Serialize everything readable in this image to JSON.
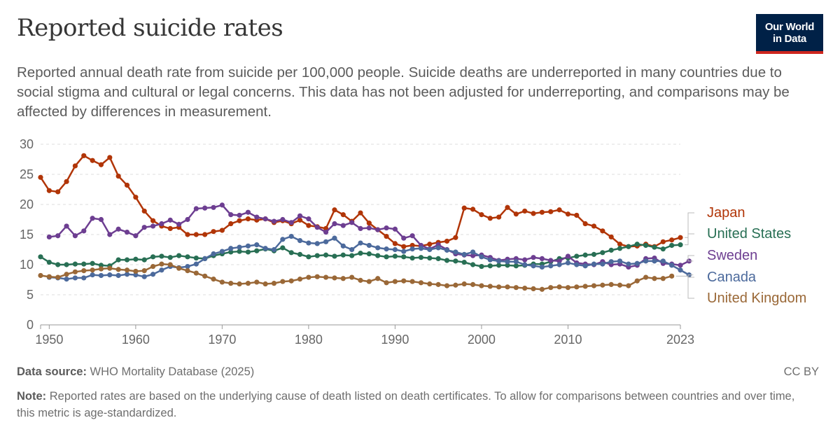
{
  "header": {
    "title": "Reported suicide rates",
    "subtitle": "Reported annual death rate from suicide per 100,000 people. Suicide deaths are underreported in many countries due to social stigma and cultural or legal concerns. This data has not been adjusted for underreporting, and comparisons may be affected by differences in measurement.",
    "logo_line1": "Our World",
    "logo_line2": "in Data"
  },
  "footer": {
    "source_label": "Data source:",
    "source_text": " WHO Mortality Database (2025)",
    "license": "CC BY",
    "note_label": "Note:",
    "note_text": " Reported rates are based on the underlying cause of death listed on death certificates. To allow for comparisons between countries and over time, this metric is age-standardized."
  },
  "chart_data": {
    "type": "line",
    "title": "",
    "xlabel": "",
    "ylabel": "",
    "xlim": [
      1949,
      2023
    ],
    "ylim": [
      0,
      30
    ],
    "x_ticks": [
      "1950",
      "1960",
      "1970",
      "1980",
      "1990",
      "2000",
      "2010",
      "2023"
    ],
    "y_ticks": [
      "0",
      "5",
      "10",
      "15",
      "20",
      "25",
      "30"
    ],
    "grid": "horizontal dashed",
    "legend": "right end labels",
    "series": [
      {
        "name": "Japan",
        "color": "#b13507",
        "start": 1949,
        "values": [
          24.5,
          22.3,
          22.1,
          23.8,
          26.4,
          28.1,
          27.3,
          26.6,
          27.8,
          24.7,
          23.2,
          21.2,
          18.9,
          17.3,
          16.4,
          16.0,
          16.2,
          15.0,
          15.0,
          15.0,
          15.5,
          15.7,
          16.8,
          17.3,
          17.6,
          17.4,
          17.6,
          17.0,
          17.3,
          16.8,
          17.4,
          16.5,
          16.3,
          16.0,
          19.1,
          18.3,
          17.2,
          18.6,
          16.9,
          15.8,
          14.7,
          13.5,
          13.0,
          13.2,
          13.1,
          13.4,
          13.7,
          13.9,
          14.5,
          19.4,
          19.2,
          18.3,
          17.7,
          17.9,
          19.5,
          18.4,
          18.9,
          18.5,
          18.7,
          18.8,
          19.1,
          18.4,
          18.2,
          16.8,
          16.4,
          15.6,
          14.6,
          13.4,
          13.0,
          13.1,
          13.4,
          13.0,
          13.8,
          14.1,
          14.5
        ]
      },
      {
        "name": "United States",
        "color": "#286f54",
        "start": 1949,
        "values": [
          11.3,
          10.4,
          10.0,
          10.0,
          10.1,
          10.1,
          10.2,
          9.9,
          9.8,
          10.8,
          10.8,
          10.9,
          10.8,
          11.3,
          11.4,
          11.2,
          11.5,
          11.3,
          11.1,
          11.0,
          11.5,
          11.8,
          12.1,
          12.2,
          12.1,
          12.3,
          12.6,
          12.3,
          12.8,
          12.0,
          11.7,
          11.3,
          11.5,
          11.6,
          11.4,
          11.6,
          11.5,
          11.9,
          11.8,
          11.5,
          11.3,
          11.4,
          11.3,
          11.1,
          11.2,
          11.1,
          11.0,
          10.7,
          10.6,
          10.4,
          10.0,
          9.7,
          9.8,
          9.9,
          9.9,
          9.8,
          9.9,
          10.1,
          10.1,
          10.5,
          11.0,
          11.1,
          11.4,
          11.6,
          11.7,
          12.0,
          12.4,
          12.7,
          13.0,
          13.4,
          13.2,
          12.9,
          12.6,
          13.2,
          13.3
        ]
      },
      {
        "name": "Sweden",
        "color": "#6d3e91",
        "start": 1950,
        "values": [
          14.6,
          14.8,
          16.4,
          14.8,
          15.6,
          17.7,
          17.5,
          15.0,
          15.9,
          15.4,
          14.8,
          16.2,
          16.4,
          16.8,
          17.4,
          16.7,
          17.5,
          19.3,
          19.4,
          19.5,
          19.9,
          18.3,
          18.2,
          18.7,
          17.9,
          17.6,
          17.2,
          17.5,
          17.0,
          18.1,
          17.6,
          16.2,
          15.4,
          16.8,
          16.5,
          17.0,
          16.0,
          16.1,
          15.8,
          16.1,
          15.9,
          14.4,
          14.8,
          13.2,
          12.6,
          13.3,
          12.5,
          11.8,
          11.6,
          11.5,
          11.6,
          11.2,
          10.7,
          10.9,
          11.0,
          10.8,
          11.2,
          11.0,
          10.7,
          10.6,
          11.4,
          10.3,
          10.1,
          10.0,
          10.5,
          10.0,
          10.1,
          9.6,
          9.9,
          11.0,
          11.1,
          10.2,
          10.1,
          9.9,
          10.6
        ]
      },
      {
        "name": "Canada",
        "color": "#4c6a9c",
        "start": 1950,
        "values": [
          7.9,
          7.8,
          7.6,
          7.8,
          7.8,
          8.3,
          8.2,
          8.3,
          8.2,
          8.4,
          8.3,
          8.0,
          8.4,
          9.1,
          9.7,
          9.5,
          9.7,
          10.1,
          11.0,
          11.8,
          12.2,
          12.7,
          12.9,
          13.1,
          13.3,
          12.7,
          12.5,
          14.2,
          14.7,
          14.0,
          13.6,
          13.5,
          13.8,
          14.4,
          13.1,
          12.5,
          13.6,
          13.2,
          12.8,
          12.6,
          12.5,
          12.2,
          12.6,
          12.7,
          12.5,
          12.8,
          12.4,
          12.1,
          11.7,
          12.1,
          11.3,
          10.8,
          10.6,
          10.5,
          10.5,
          10.0,
          9.8,
          9.6,
          9.8,
          10.0,
          10.3,
          10.0,
          9.8,
          10.1,
          10.1,
          10.5,
          10.6,
          10.1,
          10.2,
          10.6,
          10.6,
          10.6,
          9.9,
          9.1,
          8.3
        ]
      },
      {
        "name": "United Kingdom",
        "color": "#9a6837",
        "start": 1949,
        "values": [
          8.2,
          8.0,
          7.9,
          8.4,
          8.8,
          9.0,
          9.1,
          9.3,
          9.4,
          9.2,
          9.1,
          8.9,
          9.0,
          9.7,
          10.1,
          10.0,
          9.4,
          9.0,
          8.6,
          8.1,
          7.6,
          7.1,
          6.9,
          6.8,
          6.9,
          7.1,
          6.8,
          6.9,
          7.2,
          7.3,
          7.6,
          7.9,
          8.0,
          7.9,
          7.8,
          7.7,
          7.9,
          7.4,
          7.2,
          7.7,
          7.0,
          7.2,
          7.3,
          7.2,
          7.0,
          6.8,
          6.7,
          6.5,
          6.6,
          6.8,
          6.7,
          6.5,
          6.4,
          6.3,
          6.3,
          6.2,
          6.1,
          6.0,
          5.9,
          6.2,
          6.3,
          6.2,
          6.3,
          6.4,
          6.5,
          6.6,
          6.7,
          6.6,
          6.5,
          7.3,
          7.9,
          7.7,
          7.7,
          8.1
        ]
      }
    ]
  }
}
